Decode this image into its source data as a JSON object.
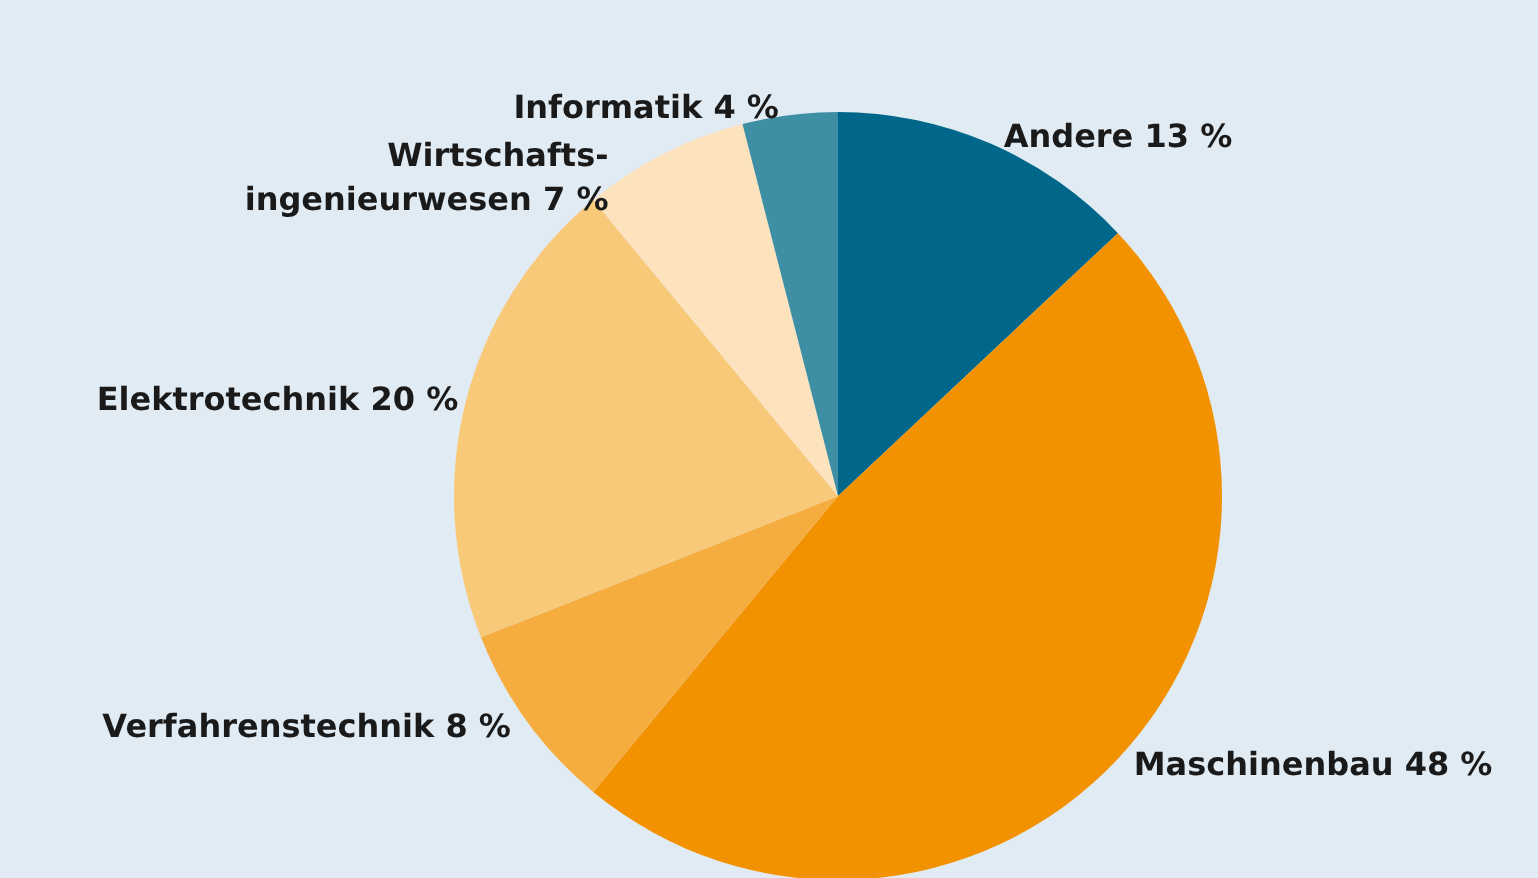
{
  "chart_data": {
    "type": "pie",
    "categories": [
      "Andere",
      "Maschinenbau",
      "Verfahrenstechnik",
      "Elektrotechnik",
      "Wirtschafts-\ningenieurwesen",
      "Informatik"
    ],
    "values": [
      13,
      48,
      8,
      20,
      7,
      4
    ],
    "value_labels": [
      "13 %",
      "48 %",
      "8 %",
      "20 %",
      "7 %",
      "4 %"
    ],
    "colors": [
      "#00678a",
      "#f39200",
      "#f6ad3f",
      "#f9c97a",
      "#fce2bd",
      "#3e8fa3"
    ],
    "legend": false
  }
}
